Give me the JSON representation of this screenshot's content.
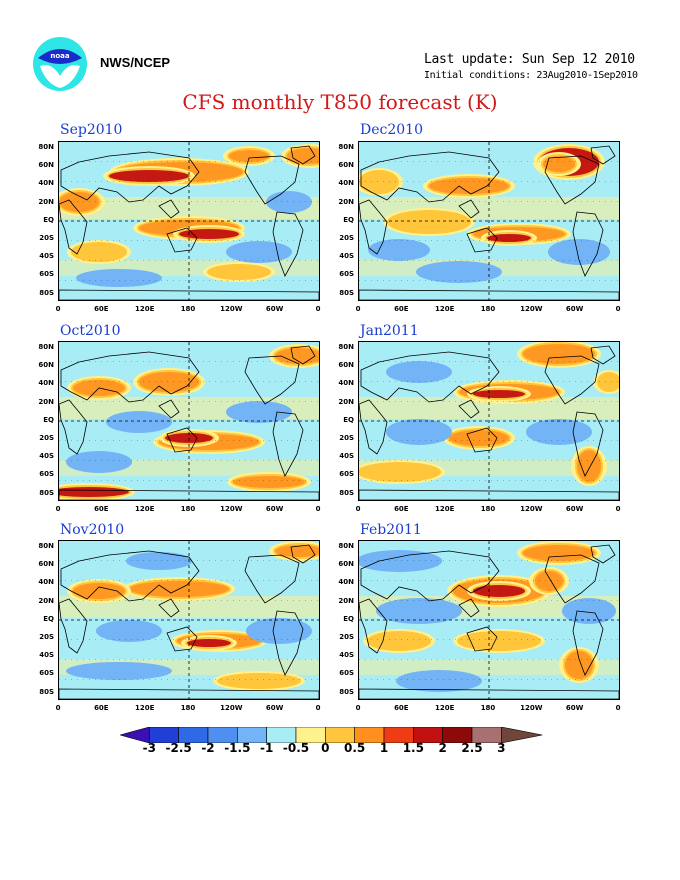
{
  "header": {
    "org": "NWS/NCEP",
    "last_update": "Last update: Sun Sep 12 2010",
    "initial_conditions": "Initial conditions: 23Aug2010-1Sep2010",
    "title": "CFS monthly T850 forecast (K)"
  },
  "axes": {
    "lat_labels": [
      "80N",
      "60N",
      "40N",
      "20N",
      "EQ",
      "20S",
      "40S",
      "60S",
      "80S"
    ],
    "lon_labels": [
      "0",
      "60E",
      "120E",
      "180",
      "120W",
      "60W",
      "0"
    ]
  },
  "panels": [
    {
      "title": "Sep2010"
    },
    {
      "title": "Dec2010"
    },
    {
      "title": "Oct2010"
    },
    {
      "title": "Jan2011"
    },
    {
      "title": "Nov2010"
    },
    {
      "title": "Feb2011"
    }
  ],
  "colorbar": {
    "labels": [
      "-3",
      "-2.5",
      "-2",
      "-1.5",
      "-1",
      "-0.5",
      "0",
      "0.5",
      "1",
      "1.5",
      "2",
      "2.5",
      "3"
    ],
    "colors": [
      "#3a10b4",
      "#1f3fd6",
      "#2f69e6",
      "#4f8ff0",
      "#73b4f6",
      "#a8ecf6",
      "#fff18c",
      "#ffc53c",
      "#ff8f1e",
      "#f03c14",
      "#c01010",
      "#8c0a0a",
      "#a87070",
      "#70463a"
    ]
  },
  "anomaly_colors": {
    "warm_strong": "#c01010",
    "warm": "#ff8f1e",
    "warm_light": "#ffc53c",
    "neutral_warm": "#fff18c",
    "neutral_cool": "#a8ecf6",
    "cool": "#73b4f6",
    "cool_strong": "#4f8ff0"
  }
}
